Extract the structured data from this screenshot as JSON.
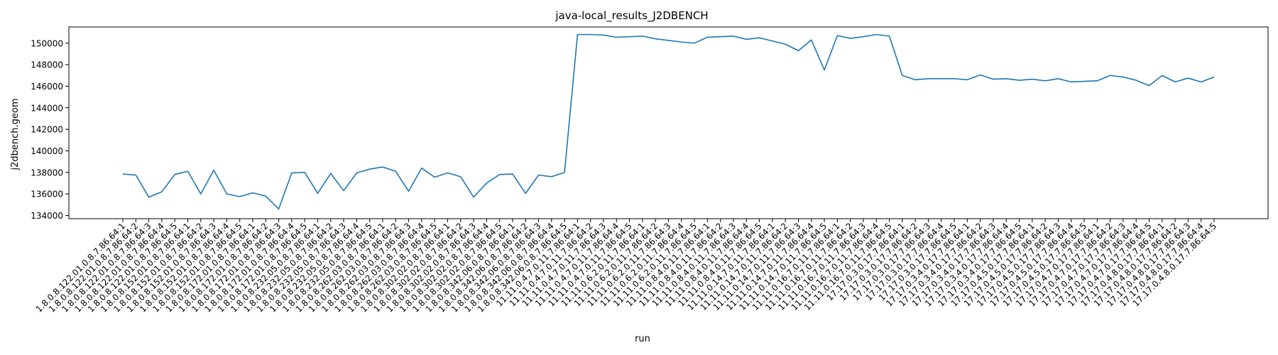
{
  "chart_data": {
    "type": "line",
    "title": "java-local_results_J2DBENCH",
    "xlabel": "run",
    "ylabel": "j2dbench.geom",
    "ylim": [
      133700,
      151500
    ],
    "yticks": [
      134000,
      136000,
      138000,
      140000,
      142000,
      144000,
      146000,
      148000,
      150000
    ],
    "grid": false,
    "line_color": "#1f77b4",
    "categories": [
      "1.8.0.8.122.01.0.8.7.86.64:1",
      "1.8.0.8.122.01.0.8.7.86.64:2",
      "1.8.0.8.122.01.0.8.7.86.64:3",
      "1.8.0.8.122.01.0.8.7.86.64:4",
      "1.8.0.8.122.01.0.8.7.86.64:5",
      "1.8.0.8.152.01.0.8.7.86.64:1",
      "1.8.0.8.152.01.0.8.7.86.64:2",
      "1.8.0.8.152.01.0.8.7.86.64:3",
      "1.8.0.8.152.01.0.8.7.86.64:4",
      "1.8.0.8.152.01.0.8.7.86.64:5",
      "1.8.0.8.172.01.0.8.7.86.64:1",
      "1.8.0.8.172.01.0.8.7.86.64:2",
      "1.8.0.8.172.01.0.8.7.86.64:3",
      "1.8.0.8.172.01.0.8.7.86.64:4",
      "1.8.0.8.172.01.0.8.7.86.64:5",
      "1.8.0.8.232.05.0.8.7.86.64:1",
      "1.8.0.8.232.05.0.8.7.86.64:2",
      "1.8.0.8.232.05.0.8.7.86.64:3",
      "1.8.0.8.232.05.0.8.7.86.64:4",
      "1.8.0.8.232.05.0.8.7.86.64:5",
      "1.8.0.8.262.03.0.8.7.86.64:1",
      "1.8.0.8.262.03.0.8.7.86.64:2",
      "1.8.0.8.262.03.0.8.7.86.64:3",
      "1.8.0.8.262.03.0.8.7.86.64:4",
      "1.8.0.8.262.03.0.8.7.86.64:5",
      "1.8.0.8.302.02.0.8.7.86.64:1",
      "1.8.0.8.302.02.0.8.7.86.64:2",
      "1.8.0.8.302.02.0.8.7.86.64:3",
      "1.8.0.8.302.02.0.8.7.86.64:4",
      "1.8.0.8.302.02.0.8.7.86.64:5",
      "1.8.0.8.342.06.0.8.7.86.64:1",
      "1.8.0.8.342.06.0.8.7.86.64:2",
      "1.8.0.8.342.06.0.8.7.86.64:3",
      "1.8.0.8.342.06.0.8.7.86.64:4",
      "1.8.0.8.342.06.0.8.7.86.64:5",
      "11.11.0.4.7.0.11.7.86.64:1",
      "11.11.0.4.7.0.11.7.86.64:2",
      "11.11.0.4.7.0.11.7.86.64:3",
      "11.11.0.4.7.0.11.7.86.64:4",
      "11.11.0.4.7.0.11.7.86.64:5",
      "11.11.0.6.2.0.11.7.86.64:1",
      "11.11.0.6.2.0.11.7.86.64:2",
      "11.11.0.6.2.0.11.7.86.64:3",
      "11.11.0.6.2.0.11.7.86.64:4",
      "11.11.0.6.2.0.11.7.86.64:5",
      "11.11.0.8.4.0.11.7.86.64:1",
      "11.11.0.8.4.0.11.7.86.64:2",
      "11.11.0.8.4.0.11.7.86.64:3",
      "11.11.0.8.4.0.11.7.86.64:4",
      "11.11.0.8.4.0.11.7.86.64:5",
      "11.11.0.14.7.0.11.7.86.64:1",
      "11.11.0.14.7.0.11.7.86.64:2",
      "11.11.0.14.7.0.11.7.86.64:3",
      "11.11.0.14.7.0.11.7.86.64:4",
      "11.11.0.14.7.0.11.7.86.64:5",
      "11.11.0.16.7.0.11.7.86.64:1",
      "11.11.0.16.7.0.11.7.86.64:2",
      "11.11.0.16.7.0.11.7.86.64:3",
      "11.11.0.16.7.0.11.7.86.64:4",
      "11.11.0.16.7.0.11.7.86.64:5",
      "17.17.0.3.0.17.7.86.64:1",
      "17.17.0.3.0.17.7.86.64:2",
      "17.17.0.3.0.17.7.86.64:3",
      "17.17.0.3.0.17.7.86.64:4",
      "17.17.0.3.0.17.7.86.64:5",
      "17.17.0.3.4.0.17.7.86.64:1",
      "17.17.0.3.4.0.17.7.86.64:2",
      "17.17.0.3.4.0.17.7.86.64:3",
      "17.17.0.3.4.0.17.7.86.64:4",
      "17.17.0.3.4.0.17.7.86.64:5",
      "17.17.0.4.5.0.17.7.86.64:1",
      "17.17.0.4.5.0.17.7.86.64:2",
      "17.17.0.4.5.0.17.7.86.64:3",
      "17.17.0.4.5.0.17.7.86.64:4",
      "17.17.0.4.5.0.17.7.86.64:5",
      "17.17.0.4.7.0.17.7.86.64:1",
      "17.17.0.4.7.0.17.7.86.64:2",
      "17.17.0.4.7.0.17.7.86.64:3",
      "17.17.0.4.7.0.17.7.86.64:4",
      "17.17.0.4.7.0.17.7.86.64:5",
      "17.17.0.4.8.0.17.7.86.64:1",
      "17.17.0.4.8.0.17.7.86.64:2",
      "17.17.0.4.8.0.17.7.86.64:3",
      "17.17.0.4.8.0.17.7.86.64:4",
      "17.17.0.4.8.0.17.7.86.64:5"
    ],
    "values": [
      137850,
      137750,
      135700,
      136200,
      137800,
      138100,
      136000,
      138200,
      136000,
      135750,
      136100,
      135800,
      134600,
      137950,
      138000,
      136050,
      137900,
      136300,
      137950,
      138300,
      138500,
      138100,
      136250,
      138400,
      137550,
      137950,
      137600,
      135700,
      137000,
      137800,
      137850,
      136050,
      137750,
      137600,
      138000,
      150800,
      150800,
      150750,
      150550,
      150600,
      150650,
      150400,
      150250,
      150100,
      150000,
      150550,
      150600,
      150650,
      150350,
      150500,
      150200,
      149900,
      149300,
      150300,
      147500,
      150700,
      150450,
      150600,
      150800,
      150650,
      147000,
      146600,
      146700,
      146700,
      146700,
      146600,
      147050,
      146650,
      146700,
      146550,
      146650,
      146500,
      146700,
      146400,
      146450,
      146500,
      147000,
      146850,
      146550,
      146050,
      147000,
      146400,
      146750,
      146400,
      146850
    ]
  }
}
